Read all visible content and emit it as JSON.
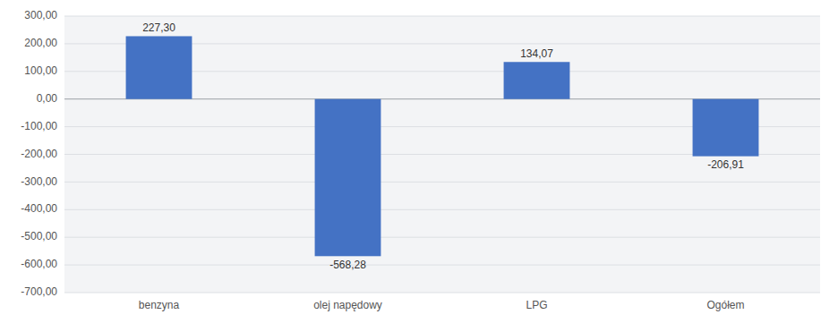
{
  "chart_data": {
    "type": "bar",
    "categories": [
      "benzyna",
      "olej napędowy",
      "LPG",
      "Ogółem"
    ],
    "values": [
      227.3,
      -568.28,
      134.07,
      -206.91
    ],
    "value_labels": [
      "227,30",
      "-568,28",
      "134,07",
      "-206,91"
    ],
    "color": "#4472C4",
    "ylim": [
      -700,
      300
    ],
    "yticks": [
      {
        "value": -700,
        "label": "-700,00"
      },
      {
        "value": -600,
        "label": "-600,00"
      },
      {
        "value": -500,
        "label": "-500,00"
      },
      {
        "value": -400,
        "label": "-400,00"
      },
      {
        "value": -300,
        "label": "-300,00"
      },
      {
        "value": -200,
        "label": "-200,00"
      },
      {
        "value": -100,
        "label": "-100,00"
      },
      {
        "value": 0,
        "label": "0,00"
      },
      {
        "value": 100,
        "label": "100,00"
      },
      {
        "value": 200,
        "label": "200,00"
      },
      {
        "value": 300,
        "label": "300,00"
      }
    ],
    "grid": true,
    "data_labels": true
  }
}
